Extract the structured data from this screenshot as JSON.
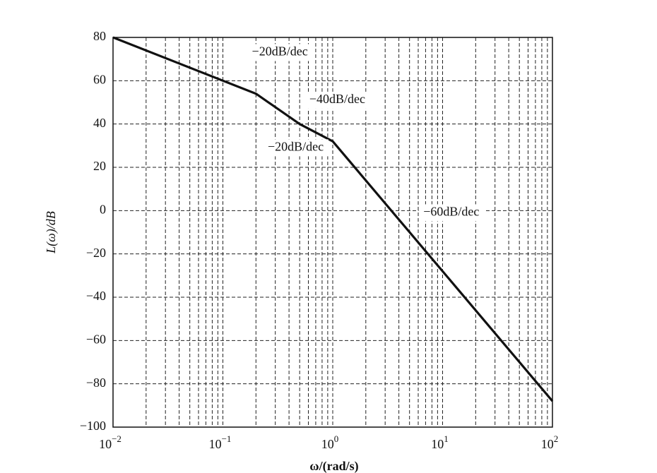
{
  "chart_data": {
    "type": "line",
    "xscale": "log",
    "xlim": [
      0.01,
      100
    ],
    "ylim": [
      -100,
      80
    ],
    "grid": true,
    "grid_style": "dashed",
    "xlabel": "ω/(rad/s)",
    "ylabel": "L(ω)/dB",
    "x_ticks": [
      {
        "value": 0.01,
        "base": "10",
        "exp": "−2"
      },
      {
        "value": 0.1,
        "base": "10",
        "exp": "−1"
      },
      {
        "value": 1,
        "base": "10",
        "exp": "0"
      },
      {
        "value": 10,
        "base": "10",
        "exp": "1"
      },
      {
        "value": 100,
        "base": "10",
        "exp": "2"
      }
    ],
    "y_ticks": [
      {
        "value": 80,
        "label": "80"
      },
      {
        "value": 60,
        "label": "60"
      },
      {
        "value": 40,
        "label": "40"
      },
      {
        "value": 20,
        "label": "20"
      },
      {
        "value": 0,
        "label": "0"
      },
      {
        "value": -20,
        "label": "−20"
      },
      {
        "value": -40,
        "label": "−40"
      },
      {
        "value": -60,
        "label": "−60"
      },
      {
        "value": -80,
        "label": "−80"
      },
      {
        "value": -100,
        "label": "−100"
      }
    ],
    "series": [
      {
        "color": "#111111",
        "x": [
          0.01,
          0.2,
          0.5,
          1,
          100
        ],
        "y": [
          80,
          54,
          40,
          32,
          -88
        ]
      }
    ],
    "annotations": [
      {
        "text": "−20dB/dec",
        "x": 0.33,
        "y": 73
      },
      {
        "text": "−40dB/dec",
        "x": 1.1,
        "y": 51
      },
      {
        "text": "−20dB/dec",
        "x": 0.46,
        "y": 29
      },
      {
        "text": "−60dB/dec",
        "x": 12,
        "y": -1
      }
    ]
  }
}
